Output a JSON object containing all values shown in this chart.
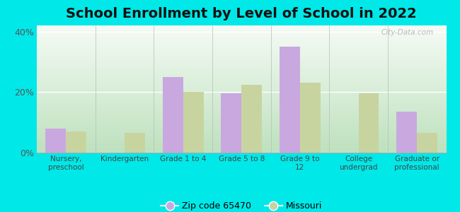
{
  "title": "School Enrollment by Level of School in 2022",
  "categories": [
    "Nursery,\npreschool",
    "Kindergarten",
    "Grade 1 to 4",
    "Grade 5 to 8",
    "Grade 9 to\n12",
    "College\nundergrad",
    "Graduate or\nprofessional"
  ],
  "zip_values": [
    8.0,
    0.0,
    25.0,
    19.5,
    35.0,
    0.0,
    13.5
  ],
  "missouri_values": [
    7.0,
    6.5,
    20.0,
    22.5,
    23.0,
    19.5,
    6.5
  ],
  "zip_color": "#c9a8e0",
  "missouri_color": "#c8d4a0",
  "background_outer": "#00e8e8",
  "background_grad_top": "#f5fbf5",
  "background_grad_bottom": "#c8e8c8",
  "ylim": [
    0,
    42
  ],
  "yticks": [
    0,
    20,
    40
  ],
  "ytick_labels": [
    "0%",
    "20%",
    "40%"
  ],
  "legend_label_zip": "Zip code 65470",
  "legend_label_mo": "Missouri",
  "title_fontsize": 14,
  "bar_width": 0.35,
  "watermark_text": "City-Data.com"
}
